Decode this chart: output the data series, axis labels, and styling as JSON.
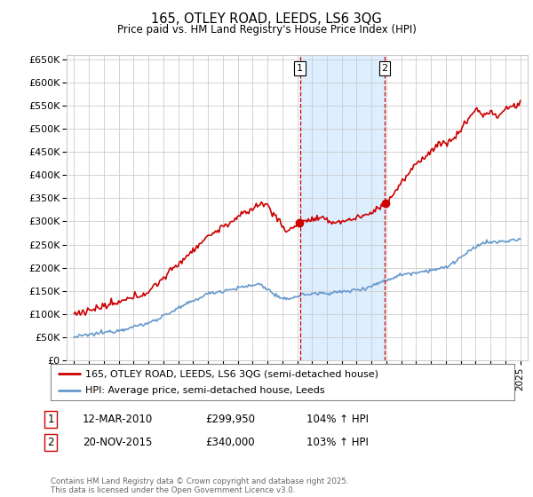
{
  "title": "165, OTLEY ROAD, LEEDS, LS6 3QG",
  "subtitle": "Price paid vs. HM Land Registry's House Price Index (HPI)",
  "ylim": [
    0,
    660000
  ],
  "yticks": [
    0,
    50000,
    100000,
    150000,
    200000,
    250000,
    300000,
    350000,
    400000,
    450000,
    500000,
    550000,
    600000,
    650000
  ],
  "xlim_start": 1994.5,
  "xlim_end": 2025.5,
  "background_color": "#ffffff",
  "grid_color": "#cccccc",
  "sale1_date": 2010.19,
  "sale2_date": 2015.89,
  "sale1_price": 299950,
  "sale2_price": 340000,
  "sale1_label": "1",
  "sale2_label": "2",
  "sale1_hpi": "104% ↑ HPI",
  "sale2_hpi": "103% ↑ HPI",
  "sale1_date_str": "12-MAR-2010",
  "sale2_date_str": "20-NOV-2015",
  "legend_property": "165, OTLEY ROAD, LEEDS, LS6 3QG (semi-detached house)",
  "legend_hpi": "HPI: Average price, semi-detached house, Leeds",
  "footnote": "Contains HM Land Registry data © Crown copyright and database right 2025.\nThis data is licensed under the Open Government Licence v3.0.",
  "red_color": "#cc0000",
  "blue_color": "#6699cc",
  "shade_color": "#ddeeff"
}
